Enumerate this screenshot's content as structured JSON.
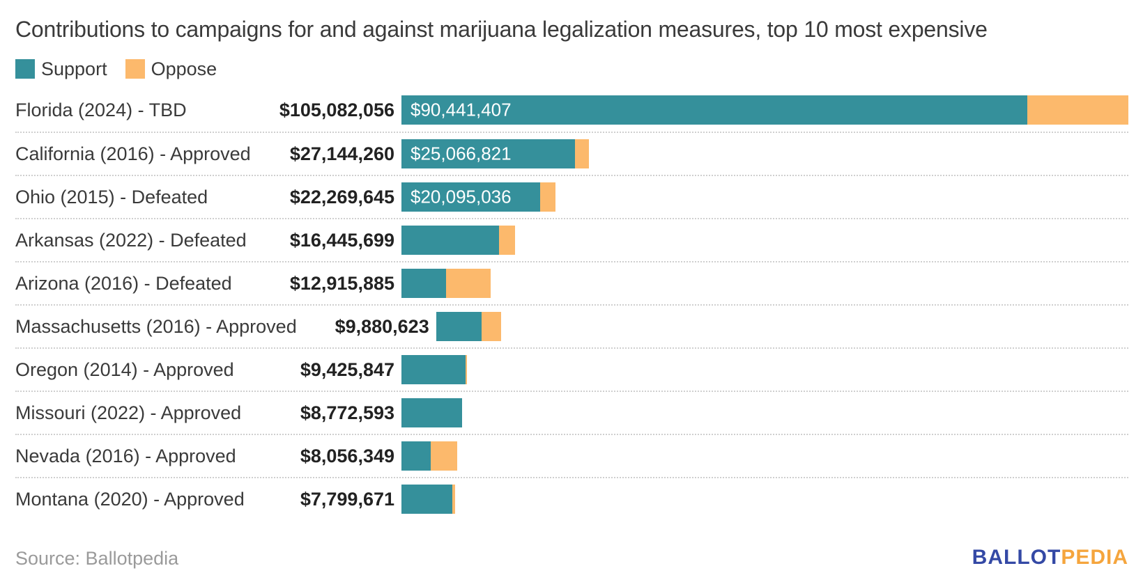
{
  "title": "Contributions to campaigns for and against marijuana legalization measures, top 10 most expensive",
  "legend": {
    "items": [
      {
        "label": "Support",
        "color": "#35909B"
      },
      {
        "label": "Oppose",
        "color": "#FCB96C"
      }
    ]
  },
  "source": "Source: Ballotpedia",
  "logo": {
    "part1": "BALLOT",
    "part2": "PEDIA",
    "color1": "#3449A5",
    "color2": "#F5A53D"
  },
  "colors": {
    "support": "#35909B",
    "oppose": "#FCB96C",
    "separator": "#CFCFCF",
    "text": "#3A3A3A",
    "total_text": "#222222",
    "bar_value_text": "#FFFFFF",
    "source_text": "#9A9A9A"
  },
  "chart_data": {
    "type": "bar",
    "orientation": "horizontal",
    "stacked": true,
    "series_names": [
      "Support",
      "Oppose"
    ],
    "value_axis_max": 105082056,
    "grid": false,
    "legend_position": "top-left",
    "rows": [
      {
        "label": "Florida (2024) - TBD",
        "total": 105082056,
        "total_label": "$105,082,056",
        "support": 90441407,
        "oppose": 14640649,
        "bar_label": "$90,441,407",
        "estimated": false
      },
      {
        "label": "California (2016) - Approved",
        "total": 27144260,
        "total_label": "$27,144,260",
        "support": 25066821,
        "oppose": 2077439,
        "bar_label": "$25,066,821",
        "estimated": false
      },
      {
        "label": "Ohio (2015) - Defeated",
        "total": 22269645,
        "total_label": "$22,269,645",
        "support": 20095036,
        "oppose": 2174609,
        "bar_label": "$20,095,036",
        "estimated": false
      },
      {
        "label": "Arkansas (2022) - Defeated",
        "total": 16445699,
        "total_label": "$16,445,699",
        "support": 14100000,
        "oppose": 2345699,
        "bar_label": "",
        "estimated": true
      },
      {
        "label": "Arizona (2016) - Defeated",
        "total": 12915885,
        "total_label": "$12,915,885",
        "support": 6460000,
        "oppose": 6455885,
        "bar_label": "",
        "estimated": true
      },
      {
        "label": "Massachusetts (2016) - Approved",
        "total": 9880623,
        "total_label": "$9,880,623",
        "support": 6860000,
        "oppose": 3020623,
        "bar_label": "",
        "estimated": true
      },
      {
        "label": "Oregon (2014) - Approved",
        "total": 9425847,
        "total_label": "$9,425,847",
        "support": 9230000,
        "oppose": 195847,
        "bar_label": "",
        "estimated": true
      },
      {
        "label": "Missouri (2022) - Approved",
        "total": 8772593,
        "total_label": "$8,772,593",
        "support": 8772593,
        "oppose": 0,
        "bar_label": "",
        "estimated": true
      },
      {
        "label": "Nevada (2016) - Approved",
        "total": 8056349,
        "total_label": "$8,056,349",
        "support": 4230000,
        "oppose": 3826349,
        "bar_label": "",
        "estimated": true
      },
      {
        "label": "Montana (2020) - Approved",
        "total": 7799671,
        "total_label": "$7,799,671",
        "support": 7400000,
        "oppose": 399671,
        "bar_label": "",
        "estimated": true
      }
    ]
  }
}
